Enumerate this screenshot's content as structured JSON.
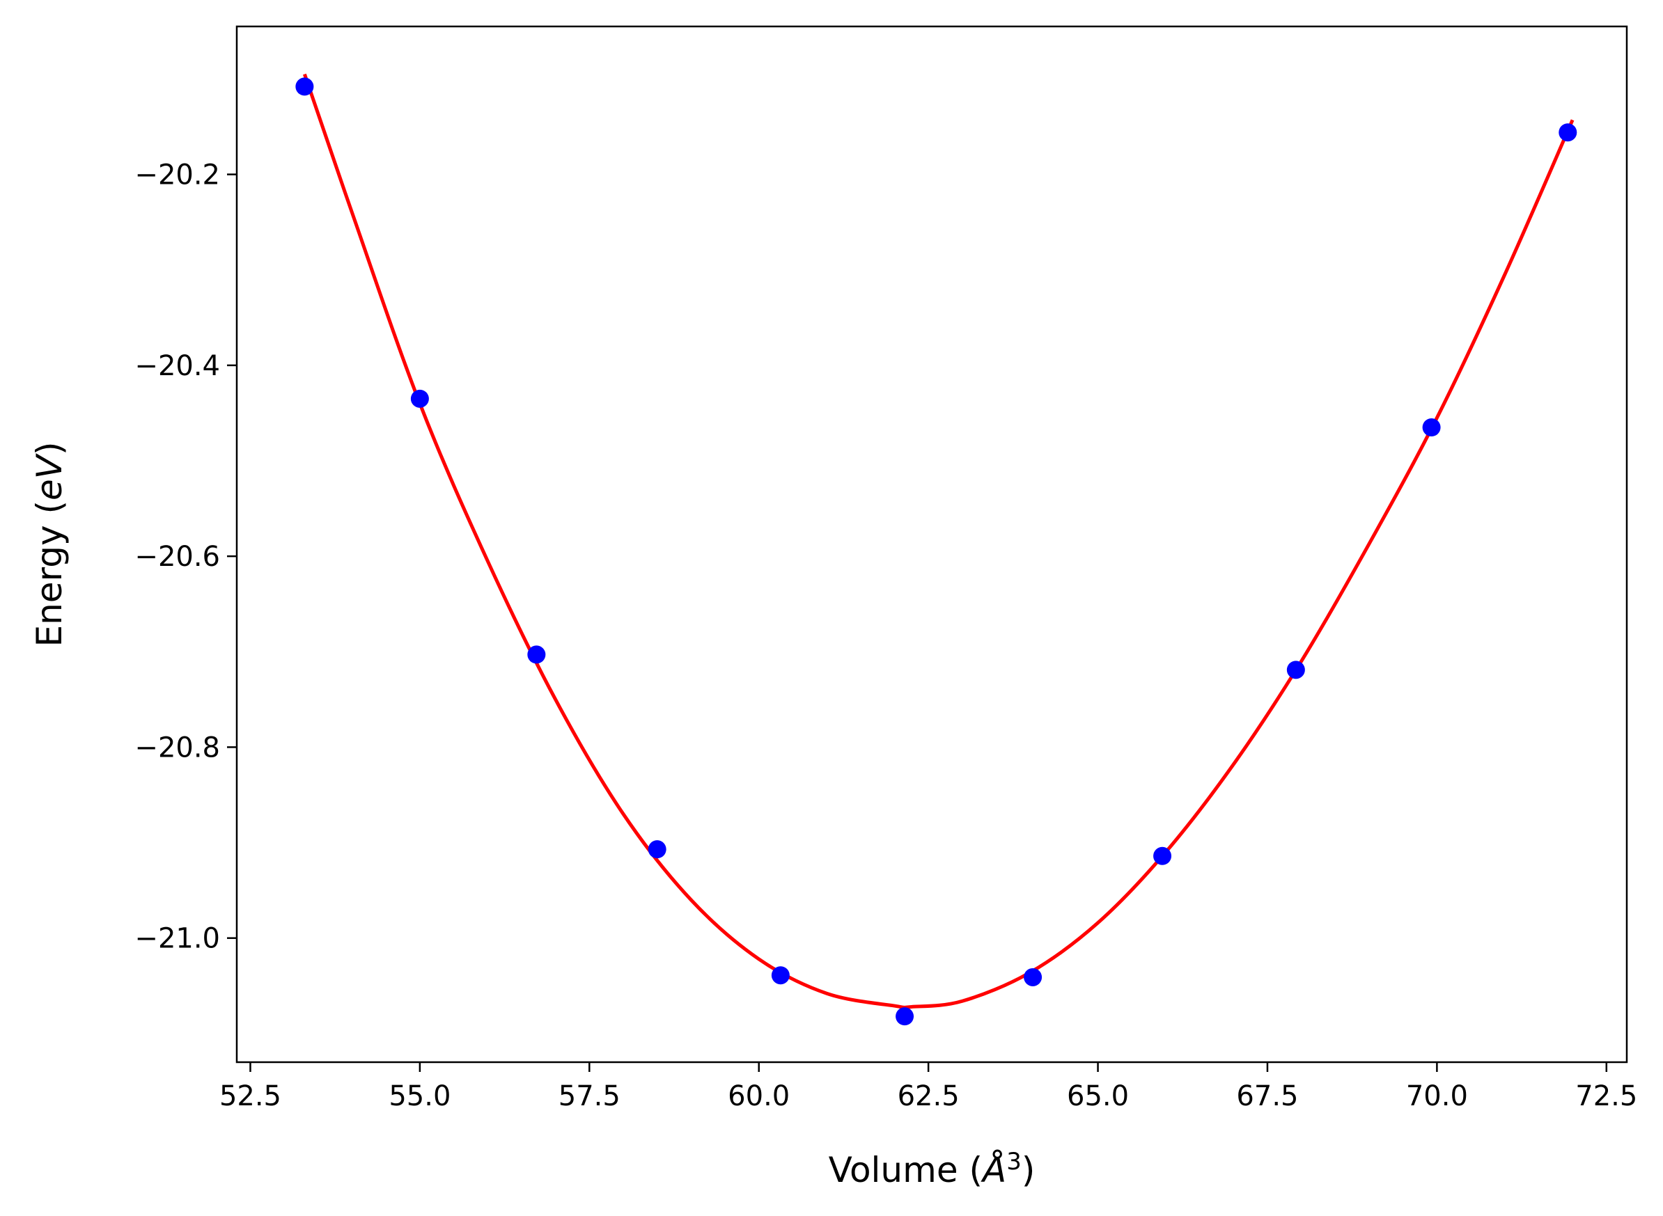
{
  "chart_data": {
    "type": "scatter",
    "xlabel_main": "Volume (",
    "xlabel_unit": "Å",
    "xlabel_exp": "3",
    "xlabel_close": ")",
    "ylabel_main": "Energy (",
    "ylabel_unit": "eV",
    "ylabel_close": ")",
    "xlim": [
      52.3,
      72.8
    ],
    "ylim": [
      -21.13,
      -20.045
    ],
    "x_ticks": [
      52.5,
      55.0,
      57.5,
      60.0,
      62.5,
      65.0,
      67.5,
      70.0,
      72.5
    ],
    "x_tick_labels": [
      "52.5",
      "55.0",
      "57.5",
      "60.0",
      "62.5",
      "65.0",
      "67.5",
      "70.0",
      "72.5"
    ],
    "y_ticks": [
      -21.0,
      -20.8,
      -20.6,
      -20.4,
      -20.2
    ],
    "y_tick_labels": [
      "−21.0",
      "−20.8",
      "−20.6",
      "−20.4",
      "−20.2"
    ],
    "grid": false,
    "series": [
      {
        "kind": "points",
        "color": "#0000ff",
        "x": [
          53.3,
          55.0,
          56.72,
          58.5,
          60.32,
          62.15,
          64.04,
          65.95,
          67.92,
          69.92,
          71.93
        ],
        "y": [
          -20.108,
          -20.435,
          -20.703,
          -20.907,
          -21.039,
          -21.082,
          -21.041,
          -20.914,
          -20.719,
          -20.465,
          -20.156
        ]
      },
      {
        "kind": "fit",
        "color": "#ff0000",
        "x": [
          53.3,
          54.0,
          55.0,
          56.0,
          57.0,
          58.0,
          59.0,
          60.0,
          61.0,
          62.0,
          62.25,
          63.0,
          64.0,
          65.0,
          66.0,
          67.0,
          68.0,
          69.0,
          70.0,
          71.0,
          72.0
        ],
        "y": [
          -20.095,
          -20.24,
          -20.44,
          -20.605,
          -20.75,
          -20.87,
          -20.96,
          -21.022,
          -21.058,
          -21.071,
          -21.072,
          -21.066,
          -21.036,
          -20.984,
          -20.91,
          -20.818,
          -20.71,
          -20.587,
          -20.455,
          -20.305,
          -20.143
        ]
      }
    ]
  }
}
